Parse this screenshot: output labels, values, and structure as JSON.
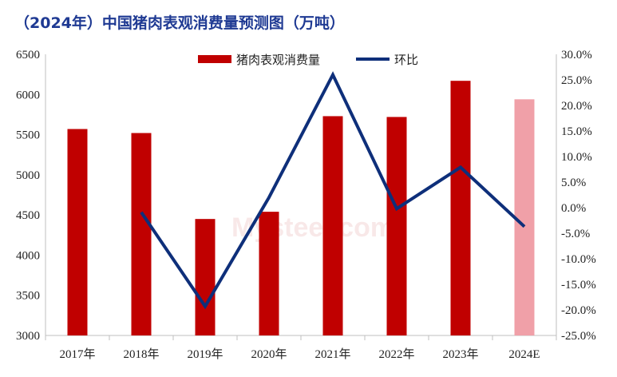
{
  "title": "（2024年）中国猪肉表观消费量预测图（万吨）",
  "watermark": "Mysteel.com",
  "colors": {
    "bar": "#c00000",
    "bar_forecast": "#f0a0a8",
    "line": "#0e2f7a",
    "title": "#1f3a93"
  },
  "chart_data": {
    "type": "bar",
    "categories": [
      "2017年",
      "2018年",
      "2019年",
      "2020年",
      "2021年",
      "2022年",
      "2023年",
      "2024E"
    ],
    "series": [
      {
        "name": "猪肉表观消费量",
        "axis": "left",
        "type": "bar",
        "values": [
          5570,
          5520,
          4450,
          4540,
          5730,
          5720,
          6170,
          5940
        ]
      },
      {
        "name": "环比",
        "axis": "right",
        "type": "line",
        "values": [
          null,
          -0.9,
          -19.3,
          2.0,
          26.0,
          -0.2,
          7.9,
          -3.7
        ]
      }
    ],
    "left_axis": {
      "min": 3000,
      "max": 6500,
      "step": 500,
      "ticks": [
        "3000",
        "3500",
        "4000",
        "4500",
        "5000",
        "5500",
        "6000",
        "6500"
      ]
    },
    "right_axis": {
      "min": -25,
      "max": 30,
      "step": 5,
      "ticks": [
        "-25.0%",
        "-20.0%",
        "-15.0%",
        "-10.0%",
        "-5.0%",
        "0.0%",
        "5.0%",
        "10.0%",
        "15.0%",
        "20.0%",
        "25.0%",
        "30.0%"
      ]
    },
    "forecast_category": "2024E",
    "legend_position": "top-center",
    "grid": false
  }
}
